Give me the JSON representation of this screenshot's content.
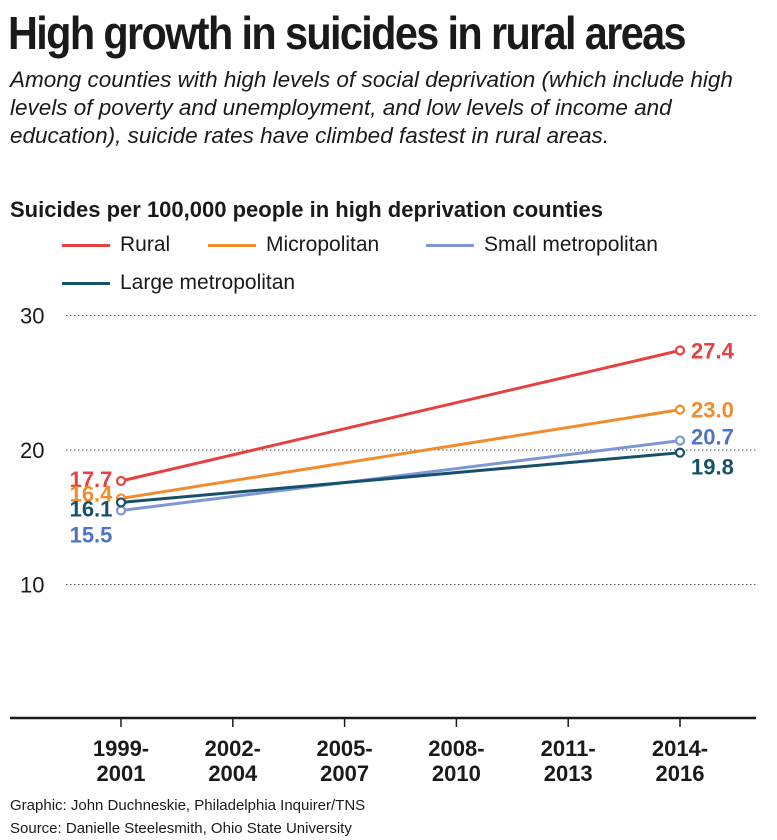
{
  "header": {
    "title": "High growth in suicides in rural areas",
    "subtitle": "Among counties with high levels of social deprivation (which include high levels of poverty and unemployment, and low levels of income and education), suicide rates have climbed fastest in rural areas."
  },
  "chart_data": {
    "type": "line",
    "title": "Suicides per 100,000 people in high deprivation counties",
    "xlabel": "",
    "ylabel": "",
    "categories": [
      "1999-2001",
      "2002-2004",
      "2005-2007",
      "2008-2010",
      "2011-2013",
      "2014-2016"
    ],
    "tick_lines": [
      [
        "1999-",
        "2001"
      ],
      [
        "2002-",
        "2004"
      ],
      [
        "2005-",
        "2007"
      ],
      [
        "2008-",
        "2010"
      ],
      [
        "2011-",
        "2013"
      ],
      [
        "2014-",
        "2016"
      ]
    ],
    "ylim": [
      0,
      30
    ],
    "yticks": [
      10,
      20,
      30
    ],
    "grid": "horizontal dotted",
    "legend_position": "top",
    "series": [
      {
        "name": "Rural",
        "color": "#e8403f",
        "x": [
          "1999-2001",
          "2014-2016"
        ],
        "values": [
          17.7,
          27.4
        ],
        "labels": [
          "17.7",
          "27.4"
        ]
      },
      {
        "name": "Micropolitan",
        "color": "#f18c2c",
        "x": [
          "1999-2001",
          "2014-2016"
        ],
        "values": [
          16.4,
          23.0
        ],
        "labels": [
          "16.4",
          "23.0"
        ]
      },
      {
        "name": "Small metropolitan",
        "color": "#7d97d6",
        "label_color": "#4f74c4",
        "x": [
          "1999-2001",
          "2014-2016"
        ],
        "values": [
          15.5,
          20.7
        ],
        "labels": [
          "15.5",
          "20.7"
        ]
      },
      {
        "name": "Large metropolitan",
        "color": "#17506a",
        "x": [
          "1999-2001",
          "2014-2016"
        ],
        "values": [
          16.1,
          19.8
        ],
        "labels": [
          "16.1",
          "19.8"
        ]
      }
    ]
  },
  "credits": {
    "graphic": "Graphic: John Duchneskie, Philadelphia Inquirer/TNS",
    "source": "Source: Danielle Steelesmith, Ohio State University"
  }
}
